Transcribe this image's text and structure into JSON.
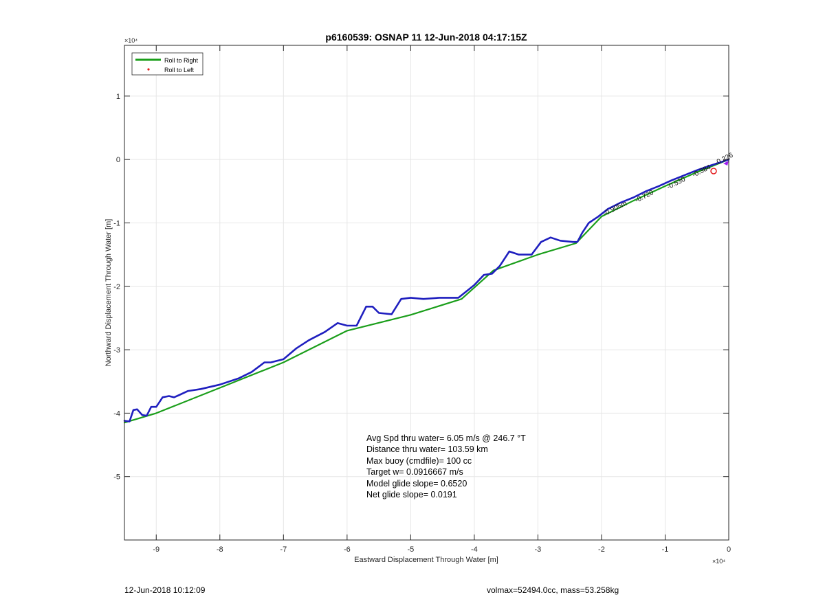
{
  "chart_data": {
    "type": "line",
    "title": "p6160539: OSNAP 11 12-Jun-2018 04:17:15Z",
    "xlabel": "Eastward Displacement Through Water [m]",
    "ylabel": "Northward Displacement Through Water [m]",
    "x_exponent_label": "×10⁴",
    "y_exponent_label": "×10⁴",
    "xlim": [
      -9.5,
      0
    ],
    "ylim": [
      -6,
      1.8
    ],
    "xticks": [
      -9,
      -8,
      -7,
      -6,
      -5,
      -4,
      -3,
      -2,
      -1,
      0
    ],
    "yticks": [
      -5,
      -4,
      -3,
      -2,
      -1,
      0,
      1
    ],
    "grid": true,
    "legend_position": "top-left",
    "legend": [
      {
        "label": "Roll to Right",
        "color": "#1a9e1a",
        "style": "line"
      },
      {
        "label": "Roll to Left",
        "color": "#e31a1c",
        "style": "dot"
      }
    ],
    "series": [
      {
        "name": "Roll to Right",
        "color": "#1a9e1a",
        "x": [
          -9.5,
          -9.0,
          -8.0,
          -7.0,
          -6.0,
          -5.0,
          -4.2,
          -3.7,
          -3.0,
          -2.4,
          -2.0,
          -1.5,
          -1.0,
          -0.5,
          0.0
        ],
        "y": [
          -4.15,
          -4.0,
          -3.6,
          -3.2,
          -2.7,
          -2.45,
          -2.2,
          -1.75,
          -1.5,
          -1.32,
          -0.9,
          -0.65,
          -0.42,
          -0.2,
          0.0
        ]
      },
      {
        "color": "#1f1fbf",
        "x": [
          -9.5,
          -9.42,
          -9.36,
          -9.3,
          -9.22,
          -9.15,
          -9.08,
          -9.0,
          -8.9,
          -8.8,
          -8.72,
          -8.65,
          -8.5,
          -8.3,
          -8.0,
          -7.7,
          -7.5,
          -7.3,
          -7.2,
          -7.0,
          -6.8,
          -6.6,
          -6.35,
          -6.15,
          -6.0,
          -5.85,
          -5.7,
          -5.6,
          -5.5,
          -5.3,
          -5.15,
          -5.0,
          -4.8,
          -4.55,
          -4.25,
          -4.0,
          -3.85,
          -3.72,
          -3.6,
          -3.45,
          -3.3,
          -3.1,
          -2.95,
          -2.8,
          -2.65,
          -2.45,
          -2.38,
          -2.3,
          -2.2,
          -2.05,
          -1.9,
          -1.7,
          -1.5,
          -1.3,
          -1.1,
          -0.9,
          -0.7,
          -0.5,
          -0.3,
          -0.15,
          0.0
        ],
        "y": [
          -4.12,
          -4.13,
          -3.95,
          -3.94,
          -4.03,
          -4.04,
          -3.9,
          -3.9,
          -3.75,
          -3.73,
          -3.75,
          -3.72,
          -3.65,
          -3.62,
          -3.55,
          -3.45,
          -3.35,
          -3.2,
          -3.2,
          -3.15,
          -2.98,
          -2.85,
          -2.72,
          -2.58,
          -2.62,
          -2.62,
          -2.32,
          -2.32,
          -2.42,
          -2.44,
          -2.2,
          -2.18,
          -2.2,
          -2.18,
          -2.18,
          -1.98,
          -1.82,
          -1.8,
          -1.68,
          -1.45,
          -1.5,
          -1.5,
          -1.3,
          -1.23,
          -1.28,
          -1.3,
          -1.3,
          -1.15,
          -1.0,
          -0.9,
          -0.78,
          -0.68,
          -0.6,
          -0.5,
          -0.42,
          -0.33,
          -0.25,
          -0.17,
          -0.1,
          -0.05,
          0.0
        ]
      }
    ],
    "annotations": {
      "track_labels": [
        "-0.905m",
        "-0.720",
        "-0.530",
        "-0.384",
        "-0.226"
      ],
      "stats": [
        "Avg Spd thru water=  6.05 m/s @ 246.7 °T",
        "Distance thru water= 103.59 km",
        "Max buoy (cmdfile)= 100 cc",
        "Target w= 0.0916667 m/s",
        "Model glide slope= 0.6520",
        "Net glide slope= 0.0191"
      ]
    }
  },
  "footer": {
    "timestamp": "12-Jun-2018 10:12:09",
    "vol_mass": "volmax=52494.0cc, mass=53.258kg"
  }
}
